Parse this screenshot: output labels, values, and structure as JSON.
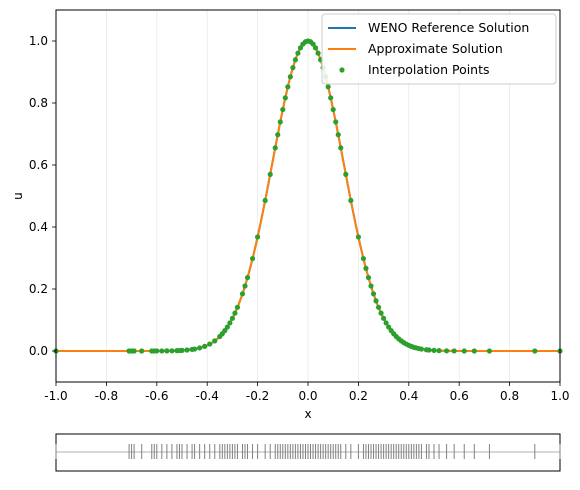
{
  "chart_data": {
    "type": "line",
    "xlabel": "x",
    "ylabel": "u",
    "xlim": [
      -1.0,
      1.0
    ],
    "ylim": [
      -0.1,
      1.1
    ],
    "xticks": [
      "-1.0",
      "-0.8",
      "-0.6",
      "-0.4",
      "-0.2",
      "0.0",
      "0.2",
      "0.4",
      "0.6",
      "0.8",
      "1.0"
    ],
    "yticks": [
      "0.0",
      "0.2",
      "0.4",
      "0.6",
      "0.8",
      "1.0"
    ],
    "grid": "faint vertical lines",
    "legend_position": "top-right",
    "series": [
      {
        "name": "WENO Reference Solution",
        "kind": "line",
        "color": "#1f77b4",
        "function": "u = exp(-x^2 / 0.04)",
        "x_range": [
          -1.0,
          1.0
        ]
      },
      {
        "name": "Approximate Solution",
        "kind": "line",
        "color": "#ff7f0e",
        "function": "u = exp(-x^2 / 0.04)",
        "x_range": [
          -1.0,
          1.0
        ]
      },
      {
        "name": "Interpolation Points",
        "kind": "scatter",
        "color": "#2ca02c",
        "x": [
          -1.0,
          -0.71,
          -0.7,
          -0.69,
          -0.66,
          -0.62,
          -0.61,
          -0.6,
          -0.58,
          -0.56,
          -0.54,
          -0.52,
          -0.51,
          -0.5,
          -0.48,
          -0.46,
          -0.45,
          -0.43,
          -0.41,
          -0.39,
          -0.37,
          -0.35,
          -0.34,
          -0.33,
          -0.32,
          -0.31,
          -0.3,
          -0.29,
          -0.28,
          -0.26,
          -0.25,
          -0.24,
          -0.22,
          -0.2,
          -0.17,
          -0.15,
          -0.13,
          -0.12,
          -0.11,
          -0.1,
          -0.09,
          -0.08,
          -0.07,
          -0.06,
          -0.05,
          -0.04,
          -0.03,
          -0.02,
          -0.01,
          0.0,
          0.01,
          0.02,
          0.03,
          0.04,
          0.05,
          0.06,
          0.07,
          0.08,
          0.09,
          0.1,
          0.11,
          0.12,
          0.13,
          0.15,
          0.17,
          0.2,
          0.22,
          0.23,
          0.24,
          0.25,
          0.26,
          0.27,
          0.28,
          0.29,
          0.3,
          0.31,
          0.32,
          0.33,
          0.34,
          0.35,
          0.36,
          0.37,
          0.38,
          0.39,
          0.4,
          0.41,
          0.42,
          0.43,
          0.44,
          0.45,
          0.47,
          0.48,
          0.5,
          0.52,
          0.55,
          0.58,
          0.62,
          0.66,
          0.72,
          0.9,
          1.0
        ],
        "y_function": "u = exp(-x^2 / 0.04)"
      }
    ]
  },
  "node_panel": {
    "description_visible": false,
    "ticks_x": [
      -1.0,
      -0.71,
      -0.7,
      -0.69,
      -0.66,
      -0.62,
      -0.61,
      -0.6,
      -0.58,
      -0.56,
      -0.54,
      -0.52,
      -0.51,
      -0.5,
      -0.48,
      -0.46,
      -0.45,
      -0.43,
      -0.41,
      -0.39,
      -0.37,
      -0.35,
      -0.34,
      -0.33,
      -0.32,
      -0.31,
      -0.3,
      -0.29,
      -0.28,
      -0.26,
      -0.25,
      -0.24,
      -0.22,
      -0.2,
      -0.17,
      -0.15,
      -0.13,
      -0.12,
      -0.11,
      -0.1,
      -0.09,
      -0.08,
      -0.07,
      -0.06,
      -0.05,
      -0.04,
      -0.03,
      -0.02,
      -0.01,
      0.0,
      0.01,
      0.02,
      0.03,
      0.04,
      0.05,
      0.06,
      0.07,
      0.08,
      0.09,
      0.1,
      0.11,
      0.12,
      0.13,
      0.15,
      0.17,
      0.2,
      0.22,
      0.23,
      0.24,
      0.25,
      0.26,
      0.27,
      0.28,
      0.29,
      0.3,
      0.31,
      0.32,
      0.33,
      0.34,
      0.35,
      0.36,
      0.37,
      0.38,
      0.39,
      0.4,
      0.41,
      0.42,
      0.43,
      0.44,
      0.45,
      0.47,
      0.48,
      0.5,
      0.52,
      0.55,
      0.58,
      0.62,
      0.66,
      0.72,
      0.9,
      1.0
    ]
  }
}
